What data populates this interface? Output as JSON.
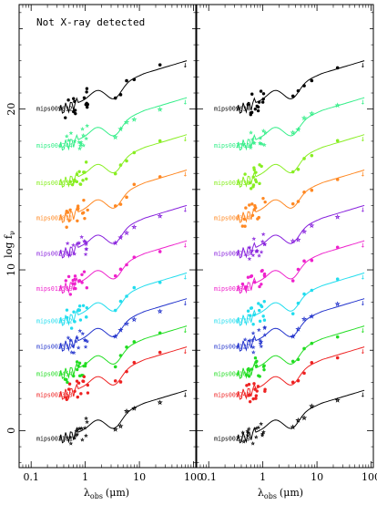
{
  "chart_data": {
    "type": "scatter",
    "title": "Not X-ray detected",
    "xlabel_symbol": "λ",
    "xlabel_sub": "obs",
    "xlabel_unit": "(μm)",
    "ylabel": "log f",
    "ylabel_sub": "ν",
    "xscale": "log",
    "xlim": [
      0.06,
      110
    ],
    "ylim": [
      -2.3,
      26.5
    ],
    "x_ticks": [
      0.1,
      1,
      10,
      100
    ],
    "x_tick_labels": [
      "0.1",
      "1",
      "10",
      "100"
    ],
    "y_ticks": [
      0,
      10,
      20
    ],
    "y_tick_labels": [
      "0",
      "10",
      "20"
    ],
    "grid": false,
    "panels": [
      {
        "sources": [
          {
            "name": "mips009632",
            "color": "#000000",
            "offset": 20.0
          },
          {
            "name": "mips004244",
            "color": "#33ee88",
            "offset": 17.7
          },
          {
            "name": "mips001652",
            "color": "#88ee22",
            "offset": 15.4
          },
          {
            "name": "mips003871",
            "color": "#ff8822",
            "offset": 13.2
          },
          {
            "name": "mips002788",
            "color": "#8822dd",
            "offset": 11.0
          },
          {
            "name": "mips013589",
            "color": "#ee22cc",
            "offset": 8.8
          },
          {
            "name": "mips003532",
            "color": "#22ddee",
            "offset": 6.8
          },
          {
            "name": "mips003537",
            "color": "#2233cc",
            "offset": 5.2
          },
          {
            "name": "mips003454",
            "color": "#22dd22",
            "offset": 3.5
          },
          {
            "name": "mips003363",
            "color": "#ee2222",
            "offset": 2.2
          },
          {
            "name": "mips003181",
            "color": "#000000",
            "offset": -0.5
          }
        ]
      },
      {
        "sources": [
          {
            "name": "mips009634",
            "color": "#000000",
            "offset": 20.0
          },
          {
            "name": "mips003561",
            "color": "#33ee88",
            "offset": 17.7
          },
          {
            "name": "mips003636",
            "color": "#88ee22",
            "offset": 15.4
          },
          {
            "name": "mips000314",
            "color": "#ff8822",
            "offset": 13.2
          },
          {
            "name": "mips009713",
            "color": "#8822dd",
            "offset": 11.0
          },
          {
            "name": "mips003841",
            "color": "#ee22cc",
            "offset": 8.8
          },
          {
            "name": "mips000777",
            "color": "#22ddee",
            "offset": 6.8
          },
          {
            "name": "mips004127",
            "color": "#2233cc",
            "offset": 5.2
          },
          {
            "name": "mips004104",
            "color": "#22dd22",
            "offset": 3.5
          },
          {
            "name": "mips009742",
            "color": "#ee2222",
            "offset": 2.2
          },
          {
            "name": "mips002219",
            "color": "#000000",
            "offset": -0.5
          }
        ]
      }
    ]
  }
}
